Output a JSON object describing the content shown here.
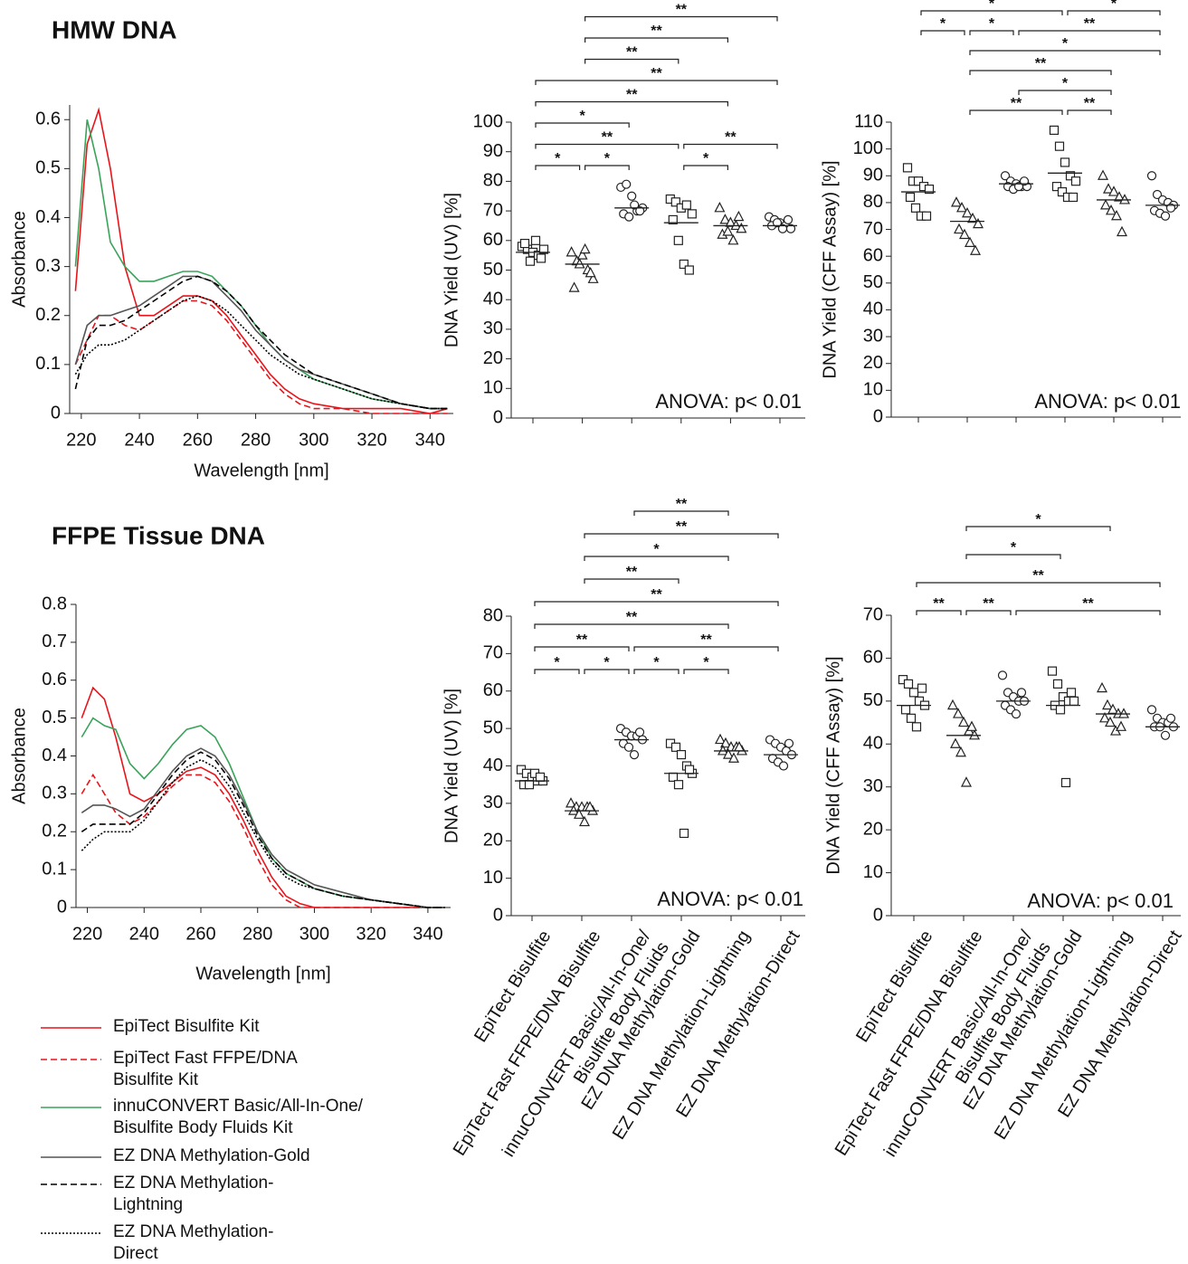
{
  "chart_data": [
    {
      "type": "line",
      "title": "HMW DNA",
      "xlabel": "Wavelength [nm]",
      "ylabel": "Absorbance",
      "x": [
        218,
        222,
        226,
        230,
        235,
        240,
        245,
        250,
        255,
        260,
        265,
        270,
        275,
        280,
        285,
        290,
        295,
        300,
        310,
        320,
        330,
        340,
        346
      ],
      "xlim": [
        216,
        348
      ],
      "ylim": [
        0,
        0.63
      ],
      "xticks": [
        220,
        240,
        260,
        280,
        300,
        320,
        340
      ],
      "yticks": [
        0,
        0.1,
        0.2,
        0.3,
        0.4,
        0.5,
        0.6
      ],
      "series": [
        {
          "name": "EpiTect Bisulfite Kit",
          "color": "#e8141a",
          "dash": "solid",
          "values": [
            0.25,
            0.55,
            0.62,
            0.5,
            0.3,
            0.2,
            0.2,
            0.22,
            0.24,
            0.24,
            0.23,
            0.2,
            0.16,
            0.12,
            0.08,
            0.05,
            0.03,
            0.02,
            0.01,
            0.01,
            0.01,
            0.0,
            0.01
          ]
        },
        {
          "name": "EpiTect Fast FFPE/DNA\nBisulfite Kit",
          "color": "#e8141a",
          "dash": "dashed",
          "values": [
            0.1,
            0.15,
            0.2,
            0.2,
            0.18,
            0.17,
            0.19,
            0.21,
            0.23,
            0.23,
            0.22,
            0.19,
            0.15,
            0.11,
            0.07,
            0.04,
            0.02,
            0.01,
            0.01,
            0.0,
            0.0,
            0.0,
            0.0
          ]
        },
        {
          "name": "innuCONVERT Basic/All-In-One/\n Bisulfite Body Fluids Kit",
          "color": "#3aa35a",
          "dash": "solid",
          "values": [
            0.3,
            0.6,
            0.5,
            0.35,
            0.3,
            0.27,
            0.27,
            0.28,
            0.29,
            0.29,
            0.28,
            0.25,
            0.22,
            0.18,
            0.14,
            0.11,
            0.09,
            0.07,
            0.05,
            0.03,
            0.02,
            0.01,
            0.01
          ]
        },
        {
          "name": "EZ DNA Methylation-Gold",
          "color": "#555555",
          "dash": "solid",
          "values": [
            0.1,
            0.18,
            0.2,
            0.2,
            0.21,
            0.22,
            0.24,
            0.26,
            0.28,
            0.28,
            0.27,
            0.24,
            0.21,
            0.17,
            0.14,
            0.11,
            0.09,
            0.08,
            0.06,
            0.04,
            0.02,
            0.01,
            0.01
          ]
        },
        {
          "name": "EZ DNA Methylation-\nLightning",
          "color": "#000000",
          "dash": "dashed",
          "values": [
            0.05,
            0.15,
            0.18,
            0.18,
            0.19,
            0.21,
            0.23,
            0.25,
            0.27,
            0.28,
            0.27,
            0.25,
            0.22,
            0.18,
            0.15,
            0.12,
            0.1,
            0.08,
            0.06,
            0.04,
            0.02,
            0.01,
            0.01
          ]
        },
        {
          "name": "EZ DNA Methylation-\nDirect",
          "color": "#000000",
          "dash": "dotted",
          "values": [
            0.08,
            0.12,
            0.14,
            0.14,
            0.15,
            0.17,
            0.19,
            0.21,
            0.23,
            0.24,
            0.23,
            0.21,
            0.18,
            0.15,
            0.12,
            0.1,
            0.08,
            0.07,
            0.05,
            0.03,
            0.02,
            0.01,
            0.01
          ]
        }
      ]
    },
    {
      "type": "dot",
      "ylabel": "DNA Yield (UV) [%]",
      "annotation": "ANOVA: p< 0.01",
      "ylim": [
        0,
        100
      ],
      "yticks": [
        0,
        10,
        20,
        30,
        40,
        50,
        60,
        70,
        80,
        90,
        100
      ],
      "markers": [
        "square",
        "triangle",
        "circle",
        "square",
        "triangle",
        "circle"
      ],
      "values": [
        [
          58,
          57,
          56,
          55,
          57,
          59,
          53,
          60,
          54
        ],
        [
          56,
          53,
          55,
          50,
          47,
          44,
          52,
          57,
          49
        ],
        [
          78,
          79,
          75,
          70,
          71,
          69,
          68,
          72,
          70
        ],
        [
          74,
          73,
          71,
          72,
          69,
          67,
          60,
          52,
          50
        ],
        [
          71,
          67,
          66,
          65,
          64,
          62,
          63,
          60,
          68
        ],
        [
          68,
          67,
          66,
          65,
          64,
          65,
          66,
          64,
          67
        ]
      ],
      "means": [
        56,
        52,
        71,
        66,
        65,
        65
      ],
      "brackets": [
        [
          {
            "from": 0,
            "to": 1,
            "label": "*"
          },
          {
            "from": 1,
            "to": 2,
            "label": "*"
          },
          {
            "from": 3,
            "to": 4,
            "label": "*"
          }
        ],
        [
          {
            "from": 0,
            "to": 3,
            "label": "**"
          },
          {
            "from": 3,
            "to": 5,
            "label": "**"
          }
        ],
        [
          {
            "from": 0,
            "to": 2,
            "label": "*"
          }
        ],
        [
          {
            "from": 0,
            "to": 4,
            "label": "**"
          }
        ],
        [
          {
            "from": 0,
            "to": 5,
            "label": "**"
          }
        ],
        [
          {
            "from": 1,
            "to": 3,
            "label": "**"
          }
        ],
        [
          {
            "from": 1,
            "to": 4,
            "label": "**"
          }
        ],
        [
          {
            "from": 1,
            "to": 5,
            "label": "**"
          }
        ]
      ]
    },
    {
      "type": "dot",
      "ylabel": "DNA Yield (CFF Assay) [%]",
      "annotation": "ANOVA: p< 0.01",
      "ylim": [
        0,
        110
      ],
      "yticks": [
        0,
        10,
        20,
        30,
        40,
        50,
        60,
        70,
        80,
        90,
        100,
        110
      ],
      "markers": [
        "square",
        "triangle",
        "circle",
        "square",
        "triangle",
        "circle"
      ],
      "values": [
        [
          93,
          88,
          88,
          86,
          85,
          82,
          78,
          75,
          75
        ],
        [
          80,
          78,
          76,
          74,
          72,
          70,
          68,
          65,
          62
        ],
        [
          90,
          88,
          87,
          86,
          86,
          86,
          85,
          86,
          88
        ],
        [
          107,
          101,
          95,
          90,
          88,
          86,
          84,
          82,
          82
        ],
        [
          90,
          85,
          84,
          82,
          81,
          79,
          77,
          75,
          69
        ],
        [
          90,
          83,
          81,
          80,
          79,
          77,
          76,
          75,
          78
        ]
      ],
      "means": [
        84,
        73,
        87,
        91,
        81,
        79
      ],
      "brackets": [
        [
          {
            "from": 1,
            "to": 3,
            "label": "**"
          },
          {
            "from": 3,
            "to": 4,
            "label": "**"
          }
        ],
        [
          {
            "from": 2,
            "to": 4,
            "label": "*"
          }
        ],
        [
          {
            "from": 1,
            "to": 4,
            "label": "**"
          }
        ],
        [
          {
            "from": 1,
            "to": 5,
            "label": "*"
          }
        ],
        [
          {
            "from": 0,
            "to": 1,
            "label": "*"
          },
          {
            "from": 1,
            "to": 2,
            "label": "*"
          },
          {
            "from": 2,
            "to": 5,
            "label": "**"
          }
        ],
        [
          {
            "from": 0,
            "to": 3,
            "label": "*"
          },
          {
            "from": 3,
            "to": 5,
            "label": "*"
          }
        ]
      ]
    },
    {
      "type": "line",
      "title": "FFPE Tissue DNA",
      "xlabel": "Wavelength [nm]",
      "ylabel": "Absorbance",
      "x": [
        218,
        222,
        226,
        230,
        235,
        240,
        245,
        250,
        255,
        260,
        265,
        270,
        275,
        280,
        285,
        290,
        295,
        300,
        310,
        320,
        330,
        340,
        346
      ],
      "xlim": [
        216,
        348
      ],
      "ylim": [
        0,
        0.8
      ],
      "xticks": [
        220,
        240,
        260,
        280,
        300,
        320,
        340
      ],
      "yticks": [
        0,
        0.1,
        0.2,
        0.3,
        0.4,
        0.5,
        0.6,
        0.7,
        0.8
      ],
      "series": [
        {
          "color": "#e8141a",
          "dash": "solid",
          "values": [
            0.5,
            0.58,
            0.55,
            0.45,
            0.3,
            0.28,
            0.3,
            0.33,
            0.36,
            0.37,
            0.35,
            0.3,
            0.23,
            0.15,
            0.08,
            0.03,
            0.01,
            0.0,
            0,
            0,
            0,
            0,
            0
          ]
        },
        {
          "color": "#e8141a",
          "dash": "dashed",
          "values": [
            0.3,
            0.35,
            0.3,
            0.25,
            0.22,
            0.24,
            0.28,
            0.32,
            0.35,
            0.35,
            0.33,
            0.28,
            0.21,
            0.13,
            0.06,
            0.02,
            0.0,
            0,
            0,
            0,
            0,
            0,
            0
          ]
        },
        {
          "color": "#3aa35a",
          "dash": "solid",
          "values": [
            0.45,
            0.5,
            0.48,
            0.47,
            0.38,
            0.34,
            0.38,
            0.43,
            0.47,
            0.48,
            0.45,
            0.38,
            0.29,
            0.2,
            0.13,
            0.09,
            0.07,
            0.05,
            0.03,
            0.02,
            0.01,
            0.0,
            0.0
          ]
        },
        {
          "color": "#555555",
          "dash": "solid",
          "values": [
            0.25,
            0.27,
            0.27,
            0.26,
            0.24,
            0.26,
            0.31,
            0.36,
            0.4,
            0.42,
            0.4,
            0.35,
            0.28,
            0.2,
            0.14,
            0.1,
            0.08,
            0.06,
            0.04,
            0.02,
            0.01,
            0.0,
            0.0
          ]
        },
        {
          "color": "#000000",
          "dash": "dashed",
          "values": [
            0.2,
            0.22,
            0.22,
            0.22,
            0.22,
            0.25,
            0.3,
            0.35,
            0.39,
            0.41,
            0.39,
            0.34,
            0.27,
            0.19,
            0.13,
            0.09,
            0.07,
            0.05,
            0.03,
            0.02,
            0.01,
            0.0,
            0.0
          ]
        },
        {
          "color": "#000000",
          "dash": "dotted",
          "values": [
            0.15,
            0.18,
            0.2,
            0.2,
            0.2,
            0.23,
            0.28,
            0.33,
            0.37,
            0.39,
            0.37,
            0.32,
            0.25,
            0.18,
            0.12,
            0.08,
            0.06,
            0.05,
            0.03,
            0.02,
            0.01,
            0.0,
            0.0
          ]
        }
      ]
    },
    {
      "type": "dot",
      "ylabel": "DNA Yield (UV) [%]",
      "annotation": "ANOVA: p< 0.01",
      "categories": [
        "EpiTect Bisulfite",
        "EpiTect Fast FFPE/DNA Bisulfite",
        "innuCONVERT Basic/All-In-One/\nBisulfite Body Fluids",
        "EZ DNA Methylation-Gold",
        "EZ DNA Methylation-Lightning",
        "EZ DNA Methylation-Direct"
      ],
      "ylim": [
        0,
        80
      ],
      "yticks": [
        0,
        10,
        20,
        30,
        40,
        50,
        60,
        70,
        80
      ],
      "markers": [
        "square",
        "triangle",
        "circle",
        "square",
        "triangle",
        "circle"
      ],
      "values": [
        [
          39,
          38,
          37,
          36,
          36,
          35,
          35,
          38,
          37
        ],
        [
          30,
          29,
          29,
          29,
          28,
          28,
          27,
          25,
          29
        ],
        [
          50,
          49,
          48,
          48,
          47,
          46,
          45,
          43,
          49
        ],
        [
          46,
          45,
          43,
          40,
          38,
          37,
          35,
          22,
          39
        ],
        [
          47,
          46,
          45,
          45,
          44,
          44,
          43,
          42,
          45
        ],
        [
          47,
          46,
          45,
          44,
          43,
          42,
          41,
          40,
          46
        ]
      ],
      "means": [
        36,
        28,
        47,
        38,
        44,
        43
      ],
      "brackets": [
        [
          {
            "from": 0,
            "to": 1,
            "label": "*"
          },
          {
            "from": 1,
            "to": 2,
            "label": "*"
          },
          {
            "from": 2,
            "to": 3,
            "label": "*"
          },
          {
            "from": 3,
            "to": 4,
            "label": "*"
          }
        ],
        [
          {
            "from": 0,
            "to": 2,
            "label": "**"
          },
          {
            "from": 2,
            "to": 5,
            "label": "**"
          }
        ],
        [
          {
            "from": 0,
            "to": 4,
            "label": "**"
          }
        ],
        [
          {
            "from": 0,
            "to": 5,
            "label": "**"
          }
        ],
        [
          {
            "from": 1,
            "to": 3,
            "label": "**"
          }
        ],
        [
          {
            "from": 1,
            "to": 4,
            "label": "*"
          }
        ],
        [
          {
            "from": 1,
            "to": 5,
            "label": "**"
          }
        ],
        [
          {
            "from": 2,
            "to": 4,
            "label": "**"
          }
        ]
      ]
    },
    {
      "type": "dot",
      "ylabel": "DNA Yield (CFF Assay) [%]",
      "annotation": "ANOVA: p< 0.01",
      "categories": [
        "EpiTect Bisulfite",
        "EpiTect Fast FFPE/DNA Bisulfite",
        "innuCONVERT Basic/All-In-One/\nBisulfite Body Fluids",
        "EZ DNA Methylation-Gold",
        "EZ DNA Methylation-Lightning",
        "EZ DNA Methylation-Direct"
      ],
      "ylim": [
        0,
        70
      ],
      "yticks": [
        0,
        10,
        20,
        30,
        40,
        50,
        60,
        70
      ],
      "markers": [
        "square",
        "triangle",
        "circle",
        "square",
        "triangle",
        "circle"
      ],
      "values": [
        [
          55,
          54,
          52,
          50,
          49,
          48,
          46,
          44,
          53
        ],
        [
          49,
          47,
          45,
          43,
          42,
          40,
          38,
          31,
          44
        ],
        [
          56,
          52,
          51,
          50,
          50,
          49,
          48,
          47,
          52
        ],
        [
          57,
          54,
          51,
          50,
          50,
          49,
          48,
          31,
          52
        ],
        [
          53,
          49,
          48,
          47,
          47,
          46,
          45,
          43,
          44
        ],
        [
          48,
          46,
          45,
          45,
          44,
          44,
          44,
          42,
          46
        ]
      ],
      "means": [
        49,
        42,
        50,
        49,
        47,
        44
      ],
      "brackets": [
        [
          {
            "from": 0,
            "to": 1,
            "label": "**"
          },
          {
            "from": 1,
            "to": 2,
            "label": "**"
          },
          {
            "from": 2,
            "to": 5,
            "label": "**"
          }
        ],
        [
          {
            "from": 0,
            "to": 5,
            "label": "**"
          }
        ],
        [
          {
            "from": 1,
            "to": 3,
            "label": "*"
          }
        ],
        [
          {
            "from": 1,
            "to": 4,
            "label": "*"
          }
        ]
      ]
    }
  ]
}
